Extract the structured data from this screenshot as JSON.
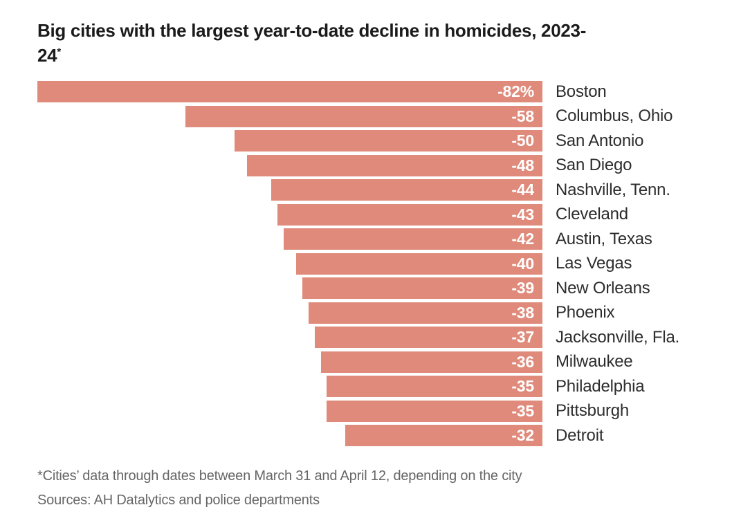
{
  "title": {
    "line1": "Big cities with the largest year-to-date decline in homicides, 2023-",
    "line2": "24",
    "footnote_marker": "*"
  },
  "chart_data": {
    "type": "bar",
    "orientation": "horizontal",
    "layout": "bars right-aligned to common baseline, extending left by magnitude",
    "title": "Big cities with the largest year-to-date decline in homicides, 2023-24*",
    "categories": [
      "Boston",
      "Columbus, Ohio",
      "San Antonio",
      "San Diego",
      "Nashville, Tenn.",
      "Cleveland",
      "Austin, Texas",
      "Las Vegas",
      "New Orleans",
      "Phoenix",
      "Jacksonville, Fla.",
      "Milwaukee",
      "Philadelphia",
      "Pittsburgh",
      "Detroit"
    ],
    "values": [
      -82,
      -58,
      -50,
      -48,
      -44,
      -43,
      -42,
      -40,
      -39,
      -38,
      -37,
      -36,
      -35,
      -35,
      -32
    ],
    "value_labels": [
      "-82%",
      "-58",
      "-50",
      "-48",
      "-44",
      "-43",
      "-42",
      "-40",
      "-39",
      "-38",
      "-37",
      "-36",
      "-35",
      "-35",
      "-32"
    ],
    "unit": "percent change, year-to-date",
    "xlim": [
      -82,
      0
    ],
    "grid": false,
    "legend": false,
    "bar_color": "#df8a7a",
    "value_label_color": "#ffffff",
    "category_label_color": "#2d2d2d"
  },
  "footnotes": {
    "note": "*Cities’ data through dates between March 31 and April 12, depending on the city",
    "sources": "Sources: AH Datalytics and police departments"
  }
}
